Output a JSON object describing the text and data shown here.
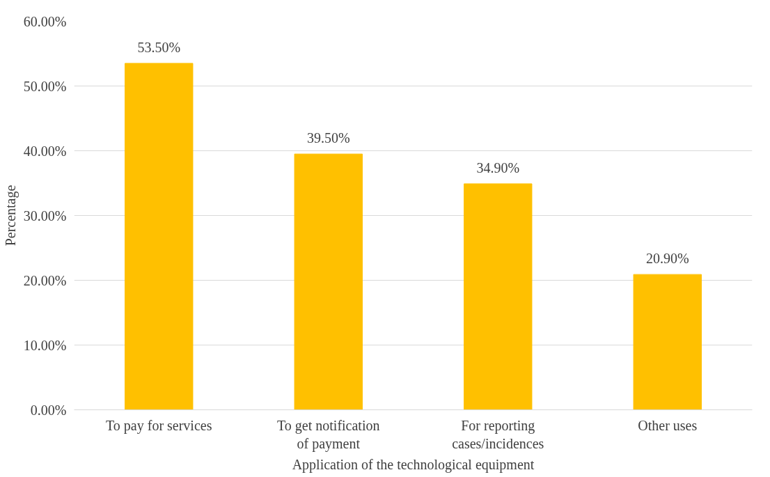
{
  "chart_data": {
    "type": "bar",
    "xlabel": "Application of the technological equipment",
    "ylabel": "Percentage",
    "categories": [
      "To pay for services",
      "To get notification\nof payment",
      "For reporting\ncases/incidences",
      "Other uses"
    ],
    "values": [
      53.5,
      39.5,
      34.9,
      20.9
    ],
    "color": "#ffc000",
    "value_labels": [
      "53.50%",
      "39.50%",
      "34.90%",
      "20.90%"
    ],
    "ylim": [
      0,
      60
    ],
    "yticks": [
      {
        "value": 0,
        "label": "0.00%"
      },
      {
        "value": 10,
        "label": "10.00%"
      },
      {
        "value": 20,
        "label": "20.00%"
      },
      {
        "value": 30,
        "label": "30.00%"
      },
      {
        "value": 40,
        "label": "40.00%"
      },
      {
        "value": 50,
        "label": "50.00%"
      },
      {
        "value": 60,
        "label": "60.00%"
      }
    ],
    "grid": "y"
  }
}
